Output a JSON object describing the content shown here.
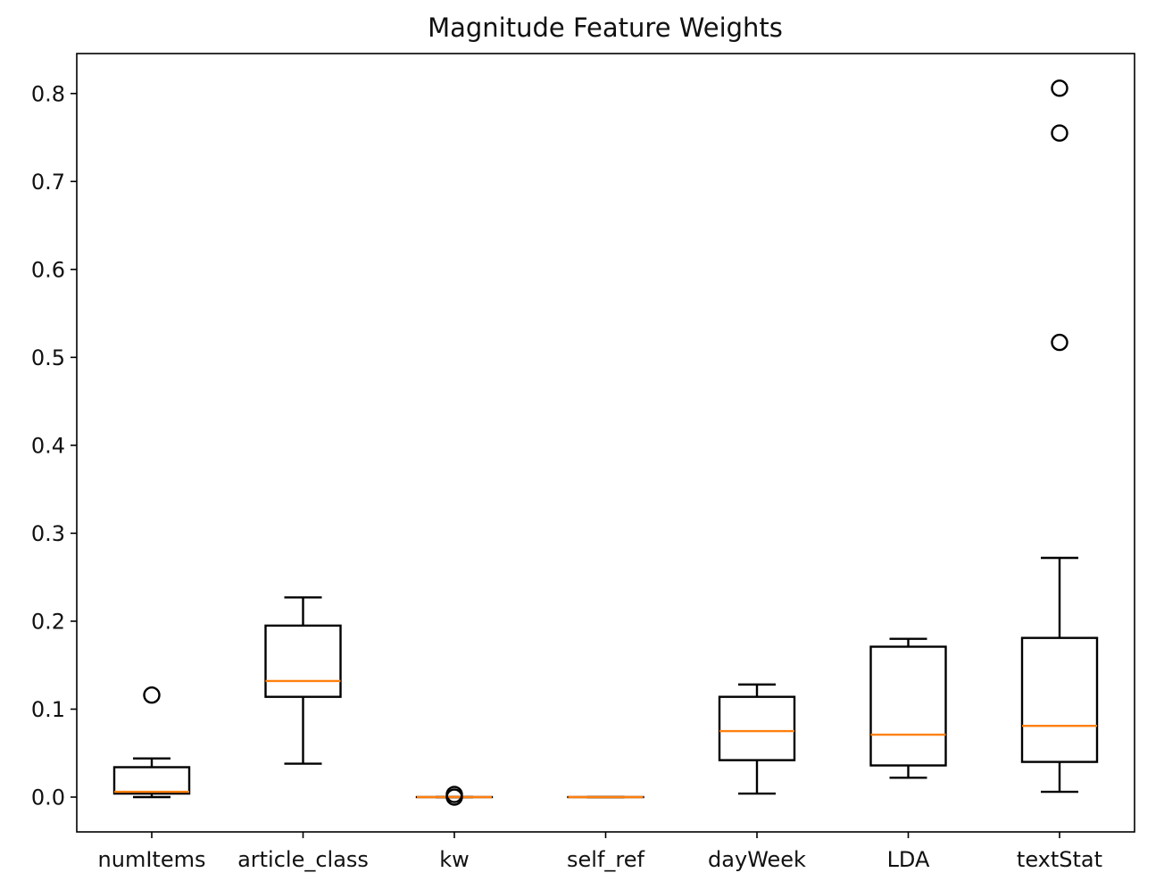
{
  "chart_data": {
    "type": "box",
    "title": "Magnitude Feature Weights",
    "xlabel": "",
    "ylabel": "",
    "ylim": [
      -0.04,
      0.845
    ],
    "yticks": [
      "0.0",
      "0.1",
      "0.2",
      "0.3",
      "0.4",
      "0.5",
      "0.6",
      "0.7",
      "0.8"
    ],
    "ytick_values": [
      0.0,
      0.1,
      0.2,
      0.3,
      0.4,
      0.5,
      0.6,
      0.7,
      0.8
    ],
    "grid": false,
    "colors": {
      "box": "#000000",
      "median": "#ff7f0e",
      "flier": "#000000"
    },
    "categories": [
      "numItems",
      "article_class",
      "kw",
      "self_ref",
      "dayWeek",
      "LDA",
      "textStat"
    ],
    "boxes": [
      {
        "category": "numItems",
        "whisker_low": 0.0,
        "q1": 0.004,
        "median": 0.006,
        "q3": 0.034,
        "whisker_high": 0.044,
        "fliers": [
          0.116
        ]
      },
      {
        "category": "article_class",
        "whisker_low": 0.038,
        "q1": 0.114,
        "median": 0.132,
        "q3": 0.195,
        "whisker_high": 0.227,
        "fliers": []
      },
      {
        "category": "kw",
        "whisker_low": 0.0,
        "q1": 0.0,
        "median": 0.0,
        "q3": 0.0,
        "whisker_high": 0.0,
        "fliers": [
          0.0,
          0.003
        ]
      },
      {
        "category": "self_ref",
        "whisker_low": 0.0,
        "q1": 0.0,
        "median": 0.0,
        "q3": 0.0,
        "whisker_high": 0.0,
        "fliers": []
      },
      {
        "category": "dayWeek",
        "whisker_low": 0.004,
        "q1": 0.042,
        "median": 0.075,
        "q3": 0.114,
        "whisker_high": 0.128,
        "fliers": []
      },
      {
        "category": "LDA",
        "whisker_low": 0.022,
        "q1": 0.036,
        "median": 0.071,
        "q3": 0.171,
        "whisker_high": 0.18,
        "fliers": []
      },
      {
        "category": "textStat",
        "whisker_low": 0.006,
        "q1": 0.04,
        "median": 0.081,
        "q3": 0.181,
        "whisker_high": 0.272,
        "fliers": [
          0.517,
          0.755,
          0.806
        ]
      }
    ]
  }
}
